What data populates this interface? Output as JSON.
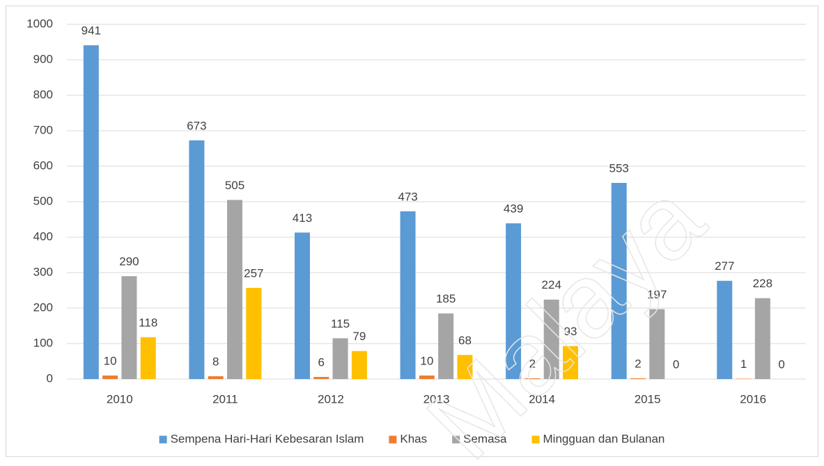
{
  "chart_data": {
    "type": "bar",
    "categories": [
      "2010",
      "2011",
      "2012",
      "2013",
      "2014",
      "2015",
      "2016"
    ],
    "series": [
      {
        "name": "Sempena Hari-Hari Kebesaran Islam",
        "color": "#5b9bd5",
        "values": [
          941,
          673,
          413,
          473,
          439,
          553,
          277
        ]
      },
      {
        "name": "Khas",
        "color": "#ed7d31",
        "values": [
          10,
          8,
          6,
          10,
          2,
          2,
          1
        ]
      },
      {
        "name": "Semasa",
        "color": "#a5a5a5",
        "values": [
          290,
          505,
          115,
          185,
          224,
          197,
          228
        ]
      },
      {
        "name": "Mingguan dan Bulanan",
        "color": "#ffc000",
        "values": [
          118,
          257,
          79,
          68,
          93,
          0,
          0
        ]
      }
    ],
    "ylim": [
      0,
      1000
    ],
    "yticks": [
      0,
      100,
      200,
      300,
      400,
      500,
      600,
      700,
      800,
      900,
      1000
    ],
    "grid": true,
    "legend": "bottom",
    "watermark": "Malaya"
  }
}
